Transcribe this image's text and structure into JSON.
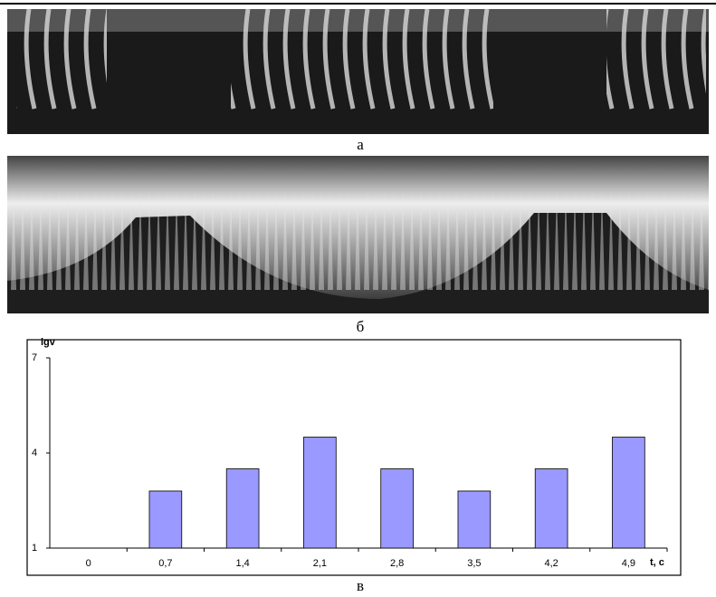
{
  "captions": [
    "а",
    "б",
    "в"
  ],
  "chart_data": {
    "type": "bar",
    "y_label": "lgv",
    "x_label": "t, c",
    "categories": [
      "0",
      "0,7",
      "1,4",
      "2,1",
      "2,8",
      "3,5",
      "4,2",
      "4,9"
    ],
    "values": [
      null,
      2.8,
      3.5,
      4.5,
      3.5,
      2.8,
      3.5,
      4.5
    ],
    "color": "#9999ff",
    "ylim": [
      1,
      7
    ],
    "yticks": [
      1,
      4,
      7
    ],
    "grid": false
  }
}
